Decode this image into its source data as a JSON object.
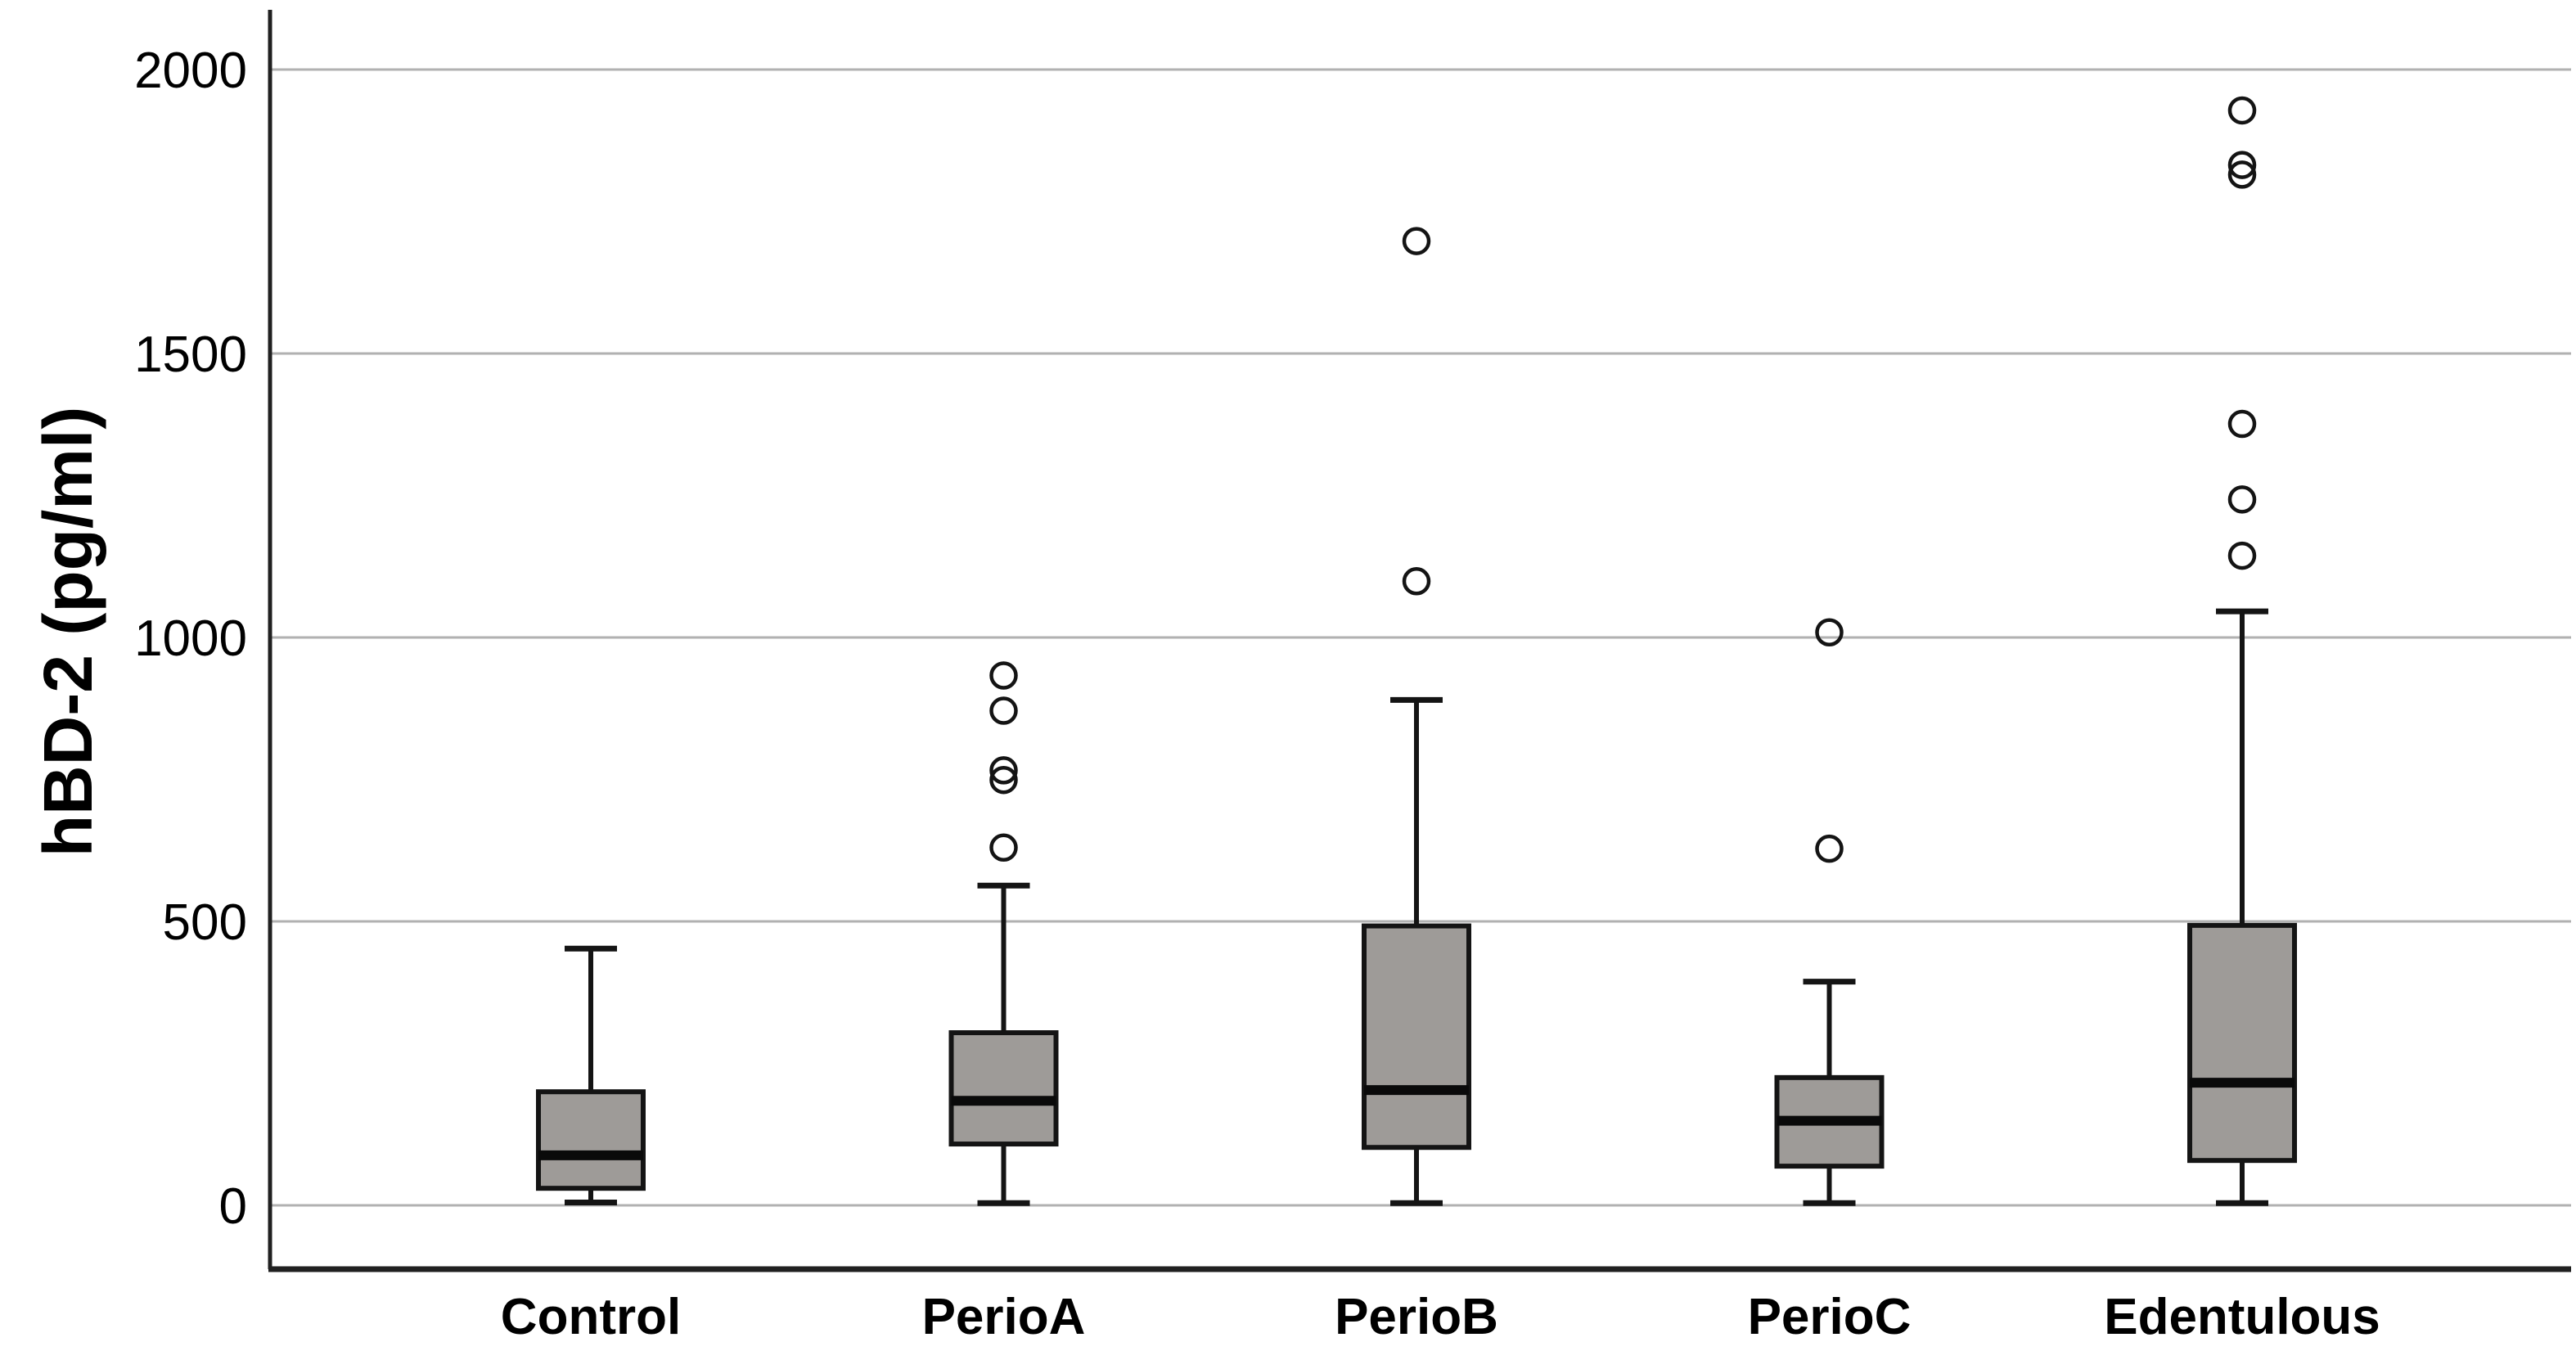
{
  "page": {
    "background": "#ffffff"
  },
  "colors": {
    "box_fill": "#9e9b98",
    "box_border": "#141414",
    "median_line": "#0a0a0a",
    "whisker": "#141414",
    "outlier_stroke": "#141414",
    "gridline": "#b1b1b1",
    "axis": "#202020",
    "text": "#000000"
  },
  "chart_data": {
    "type": "box",
    "title": "",
    "ylabel": "hBD-2 (pg/ml)",
    "xlabel": "",
    "categories": [
      "Control",
      "PerioA",
      "PerioB",
      "PerioC",
      "Edentulous"
    ],
    "yticks": [
      0,
      500,
      1000,
      1500,
      2000
    ],
    "ylim": [
      0,
      2150
    ],
    "grid": "horizontal",
    "legend": "none",
    "units": "pg/ml",
    "series": [
      {
        "name": "Control",
        "whisker_low": 5,
        "q1": 30,
        "median": 88,
        "q3": 200,
        "whisker_high": 452,
        "outliers": []
      },
      {
        "name": "PerioA",
        "whisker_low": 4,
        "q1": 108,
        "median": 184,
        "q3": 304,
        "whisker_high": 563,
        "outliers": [
          630,
          749,
          766,
          871,
          933
        ]
      },
      {
        "name": "PerioB",
        "whisker_low": 4,
        "q1": 102,
        "median": 203,
        "q3": 492,
        "whisker_high": 890,
        "outliers": [
          1099,
          1698
        ]
      },
      {
        "name": "PerioC",
        "whisker_low": 4,
        "q1": 69,
        "median": 149,
        "q3": 225,
        "whisker_high": 394,
        "outliers": [
          628,
          1009
        ]
      },
      {
        "name": "Edentulous",
        "whisker_low": 4,
        "q1": 79,
        "median": 216,
        "q3": 493,
        "whisker_high": 1046,
        "outliers": [
          1144,
          1243,
          1376,
          1815,
          1832,
          1928
        ]
      }
    ]
  }
}
